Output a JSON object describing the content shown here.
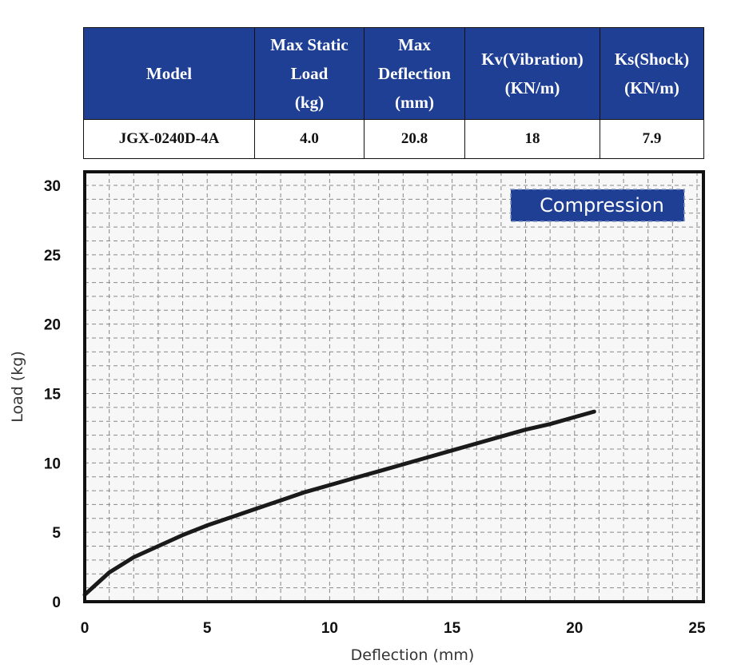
{
  "spec_table": {
    "headers": [
      {
        "lines": [
          "Model"
        ]
      },
      {
        "lines": [
          "Max Static",
          "Load",
          "(kg)"
        ]
      },
      {
        "lines": [
          "Max",
          "Deflection",
          "(mm)"
        ]
      },
      {
        "lines": [
          "Kv(Vibration)",
          "(KN/m)"
        ]
      },
      {
        "lines": [
          "Ks(Shock)",
          "(KN/m)"
        ]
      }
    ],
    "row": [
      "JGX-0240D-4A",
      "4.0",
      "20.8",
      "18",
      "7.9"
    ]
  },
  "colors": {
    "header_bg": "#1f3f95",
    "legend_bg": "#1f3f95",
    "curve": "#1a1a1a",
    "grid": "#888888",
    "frame": "#111111"
  },
  "chart_data": {
    "type": "line",
    "xlabel": "Deflection (mm)",
    "ylabel": "Load (kg)",
    "xlim": [
      0,
      25
    ],
    "ylim": [
      0,
      30
    ],
    "xticks": [
      0,
      5,
      10,
      15,
      20,
      25
    ],
    "yticks": [
      0,
      5,
      10,
      15,
      20,
      25,
      30
    ],
    "grid": true,
    "legend": {
      "label": "Compression",
      "placement": "top-right"
    },
    "series": [
      {
        "name": "Compression",
        "x": [
          0,
          0.5,
          1,
          2,
          3,
          4,
          5,
          6,
          7,
          8,
          9,
          10,
          11,
          12,
          13,
          14,
          15,
          16,
          17,
          18,
          19,
          20,
          20.8
        ],
        "y": [
          0.5,
          1.3,
          2.1,
          3.2,
          4.0,
          4.8,
          5.5,
          6.1,
          6.7,
          7.3,
          7.9,
          8.4,
          8.9,
          9.4,
          9.9,
          10.4,
          10.9,
          11.4,
          11.9,
          12.4,
          12.8,
          13.3,
          13.7
        ]
      }
    ]
  }
}
